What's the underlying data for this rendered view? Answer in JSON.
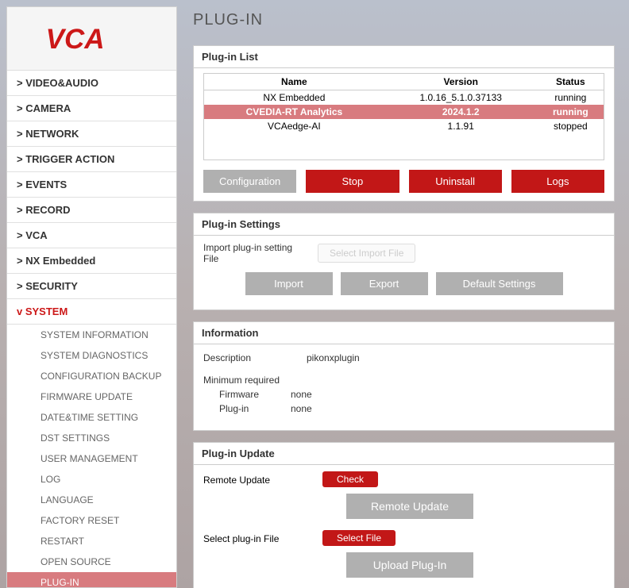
{
  "logo_text": "VCA",
  "page_title": "PLUG-IN",
  "sidebar": {
    "items": [
      {
        "label": "> VIDEO&AUDIO",
        "active": false
      },
      {
        "label": "> CAMERA",
        "active": false
      },
      {
        "label": "> NETWORK",
        "active": false
      },
      {
        "label": "> TRIGGER ACTION",
        "active": false
      },
      {
        "label": "> EVENTS",
        "active": false
      },
      {
        "label": "> RECORD",
        "active": false
      },
      {
        "label": "> VCA",
        "active": false
      },
      {
        "label": "> NX Embedded",
        "active": false
      },
      {
        "label": "> SECURITY",
        "active": false
      },
      {
        "label": "v SYSTEM",
        "active": true
      }
    ],
    "sub": [
      {
        "label": "SYSTEM INFORMATION",
        "active": false
      },
      {
        "label": "SYSTEM DIAGNOSTICS",
        "active": false
      },
      {
        "label": "CONFIGURATION BACKUP",
        "active": false
      },
      {
        "label": "FIRMWARE UPDATE",
        "active": false
      },
      {
        "label": "DATE&TIME SETTING",
        "active": false
      },
      {
        "label": "DST SETTINGS",
        "active": false
      },
      {
        "label": "USER MANAGEMENT",
        "active": false
      },
      {
        "label": "LOG",
        "active": false
      },
      {
        "label": "LANGUAGE",
        "active": false
      },
      {
        "label": "FACTORY RESET",
        "active": false
      },
      {
        "label": "RESTART",
        "active": false
      },
      {
        "label": "OPEN SOURCE",
        "active": false
      },
      {
        "label": "PLUG-IN",
        "active": true
      }
    ]
  },
  "plugin_list": {
    "title": "Plug-in List",
    "columns": [
      "Name",
      "Version",
      "Status"
    ],
    "rows": [
      {
        "name": "NX Embedded",
        "version": "1.0.16_5.1.0.37133",
        "status": "running",
        "selected": false
      },
      {
        "name": "CVEDIA-RT Analytics",
        "version": "2024.1.2",
        "status": "running",
        "selected": true
      },
      {
        "name": "VCAedge-AI",
        "version": "1.1.91",
        "status": "stopped",
        "selected": false
      }
    ]
  },
  "actions": {
    "configuration": "Configuration",
    "stop": "Stop",
    "uninstall": "Uninstall",
    "logs": "Logs"
  },
  "settings": {
    "title": "Plug-in Settings",
    "import_label": "Import plug-in setting File",
    "select_import_label": "Select Import File",
    "import_btn": "Import",
    "export_btn": "Export",
    "default_btn": "Default Settings"
  },
  "info": {
    "title": "Information",
    "description_label": "Description",
    "description_value": "pikonxplugin",
    "min_required_label": "Minimum required",
    "firmware_label": "Firmware",
    "firmware_value": "none",
    "plugin_label": "Plug-in",
    "plugin_value": "none"
  },
  "update": {
    "title": "Plug-in Update",
    "remote_label": "Remote Update",
    "check_btn": "Check",
    "remote_update_btn": "Remote Update",
    "select_label": "Select plug-in File",
    "select_file_btn": "Select File",
    "upload_btn": "Upload Plug-In"
  }
}
